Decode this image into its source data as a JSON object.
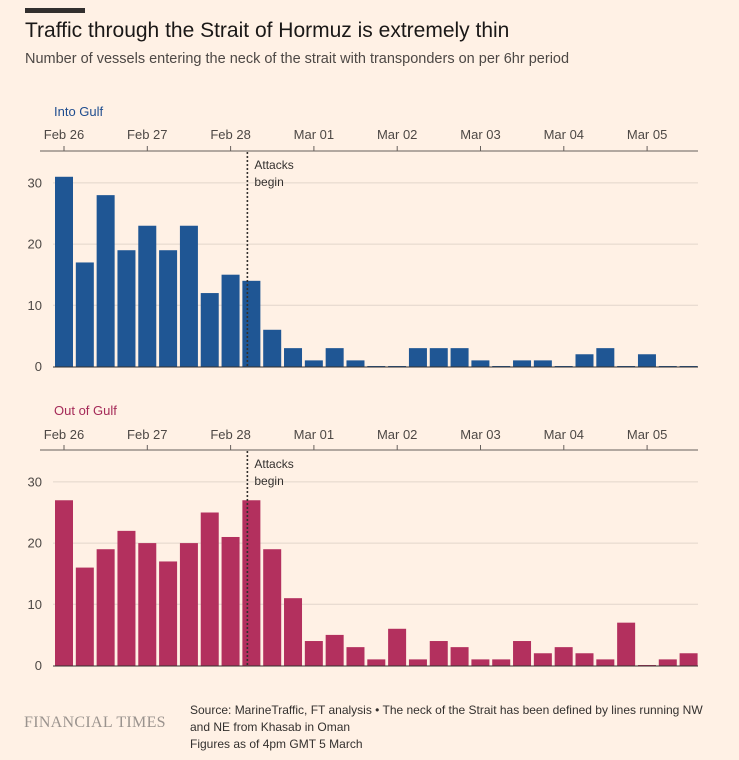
{
  "header": {
    "title": "Traffic through the Strait of Hormuz is extremely thin",
    "subtitle": "Number of vessels entering the neck of the strait with transponders on per 6hr period"
  },
  "chart_data": [
    {
      "type": "bar",
      "panel_label": "Into Gulf",
      "color": "#1f5694",
      "label_color": "#1f4d8f",
      "x_tick_labels": [
        "Feb 26",
        "Feb 27",
        "Feb 28",
        "Mar 01",
        "Mar 02",
        "Mar 03",
        "Mar 04",
        "Mar 05"
      ],
      "y_ticks": [
        0,
        10,
        20,
        30
      ],
      "ylim": [
        0,
        33
      ],
      "values": [
        31,
        17,
        28,
        19,
        23,
        19,
        23,
        12,
        15,
        14,
        6,
        3,
        1,
        3,
        1,
        0,
        0,
        3,
        3,
        3,
        1,
        0,
        1,
        1,
        0,
        2,
        3,
        0,
        2,
        0,
        0
      ],
      "annotation": {
        "text": [
          "Attacks",
          "begin"
        ],
        "after_bar_index": 9
      },
      "grid": true
    },
    {
      "type": "bar",
      "panel_label": "Out of Gulf",
      "color": "#b3305e",
      "label_color": "#a52a58",
      "x_tick_labels": [
        "Feb 26",
        "Feb 27",
        "Feb 28",
        "Mar 01",
        "Mar 02",
        "Mar 03",
        "Mar 04",
        "Mar 05"
      ],
      "y_ticks": [
        0,
        10,
        20,
        30
      ],
      "ylim": [
        0,
        33
      ],
      "values": [
        27,
        16,
        19,
        22,
        20,
        17,
        20,
        25,
        21,
        27,
        19,
        11,
        4,
        5,
        3,
        1,
        6,
        1,
        4,
        3,
        1,
        1,
        4,
        2,
        3,
        2,
        1,
        7,
        0,
        1,
        2
      ],
      "annotation": {
        "text": [
          "Attacks",
          "begin"
        ],
        "after_bar_index": 9
      },
      "grid": true
    }
  ],
  "footer": {
    "logo": "FINANCIAL TIMES",
    "source_lines": [
      "Source: MarineTraffic, FT analysis • The neck of the Strait has been defined by lines running NW and NE from Khasab in Oman",
      "Figures as of 4pm GMT 5 March"
    ]
  }
}
